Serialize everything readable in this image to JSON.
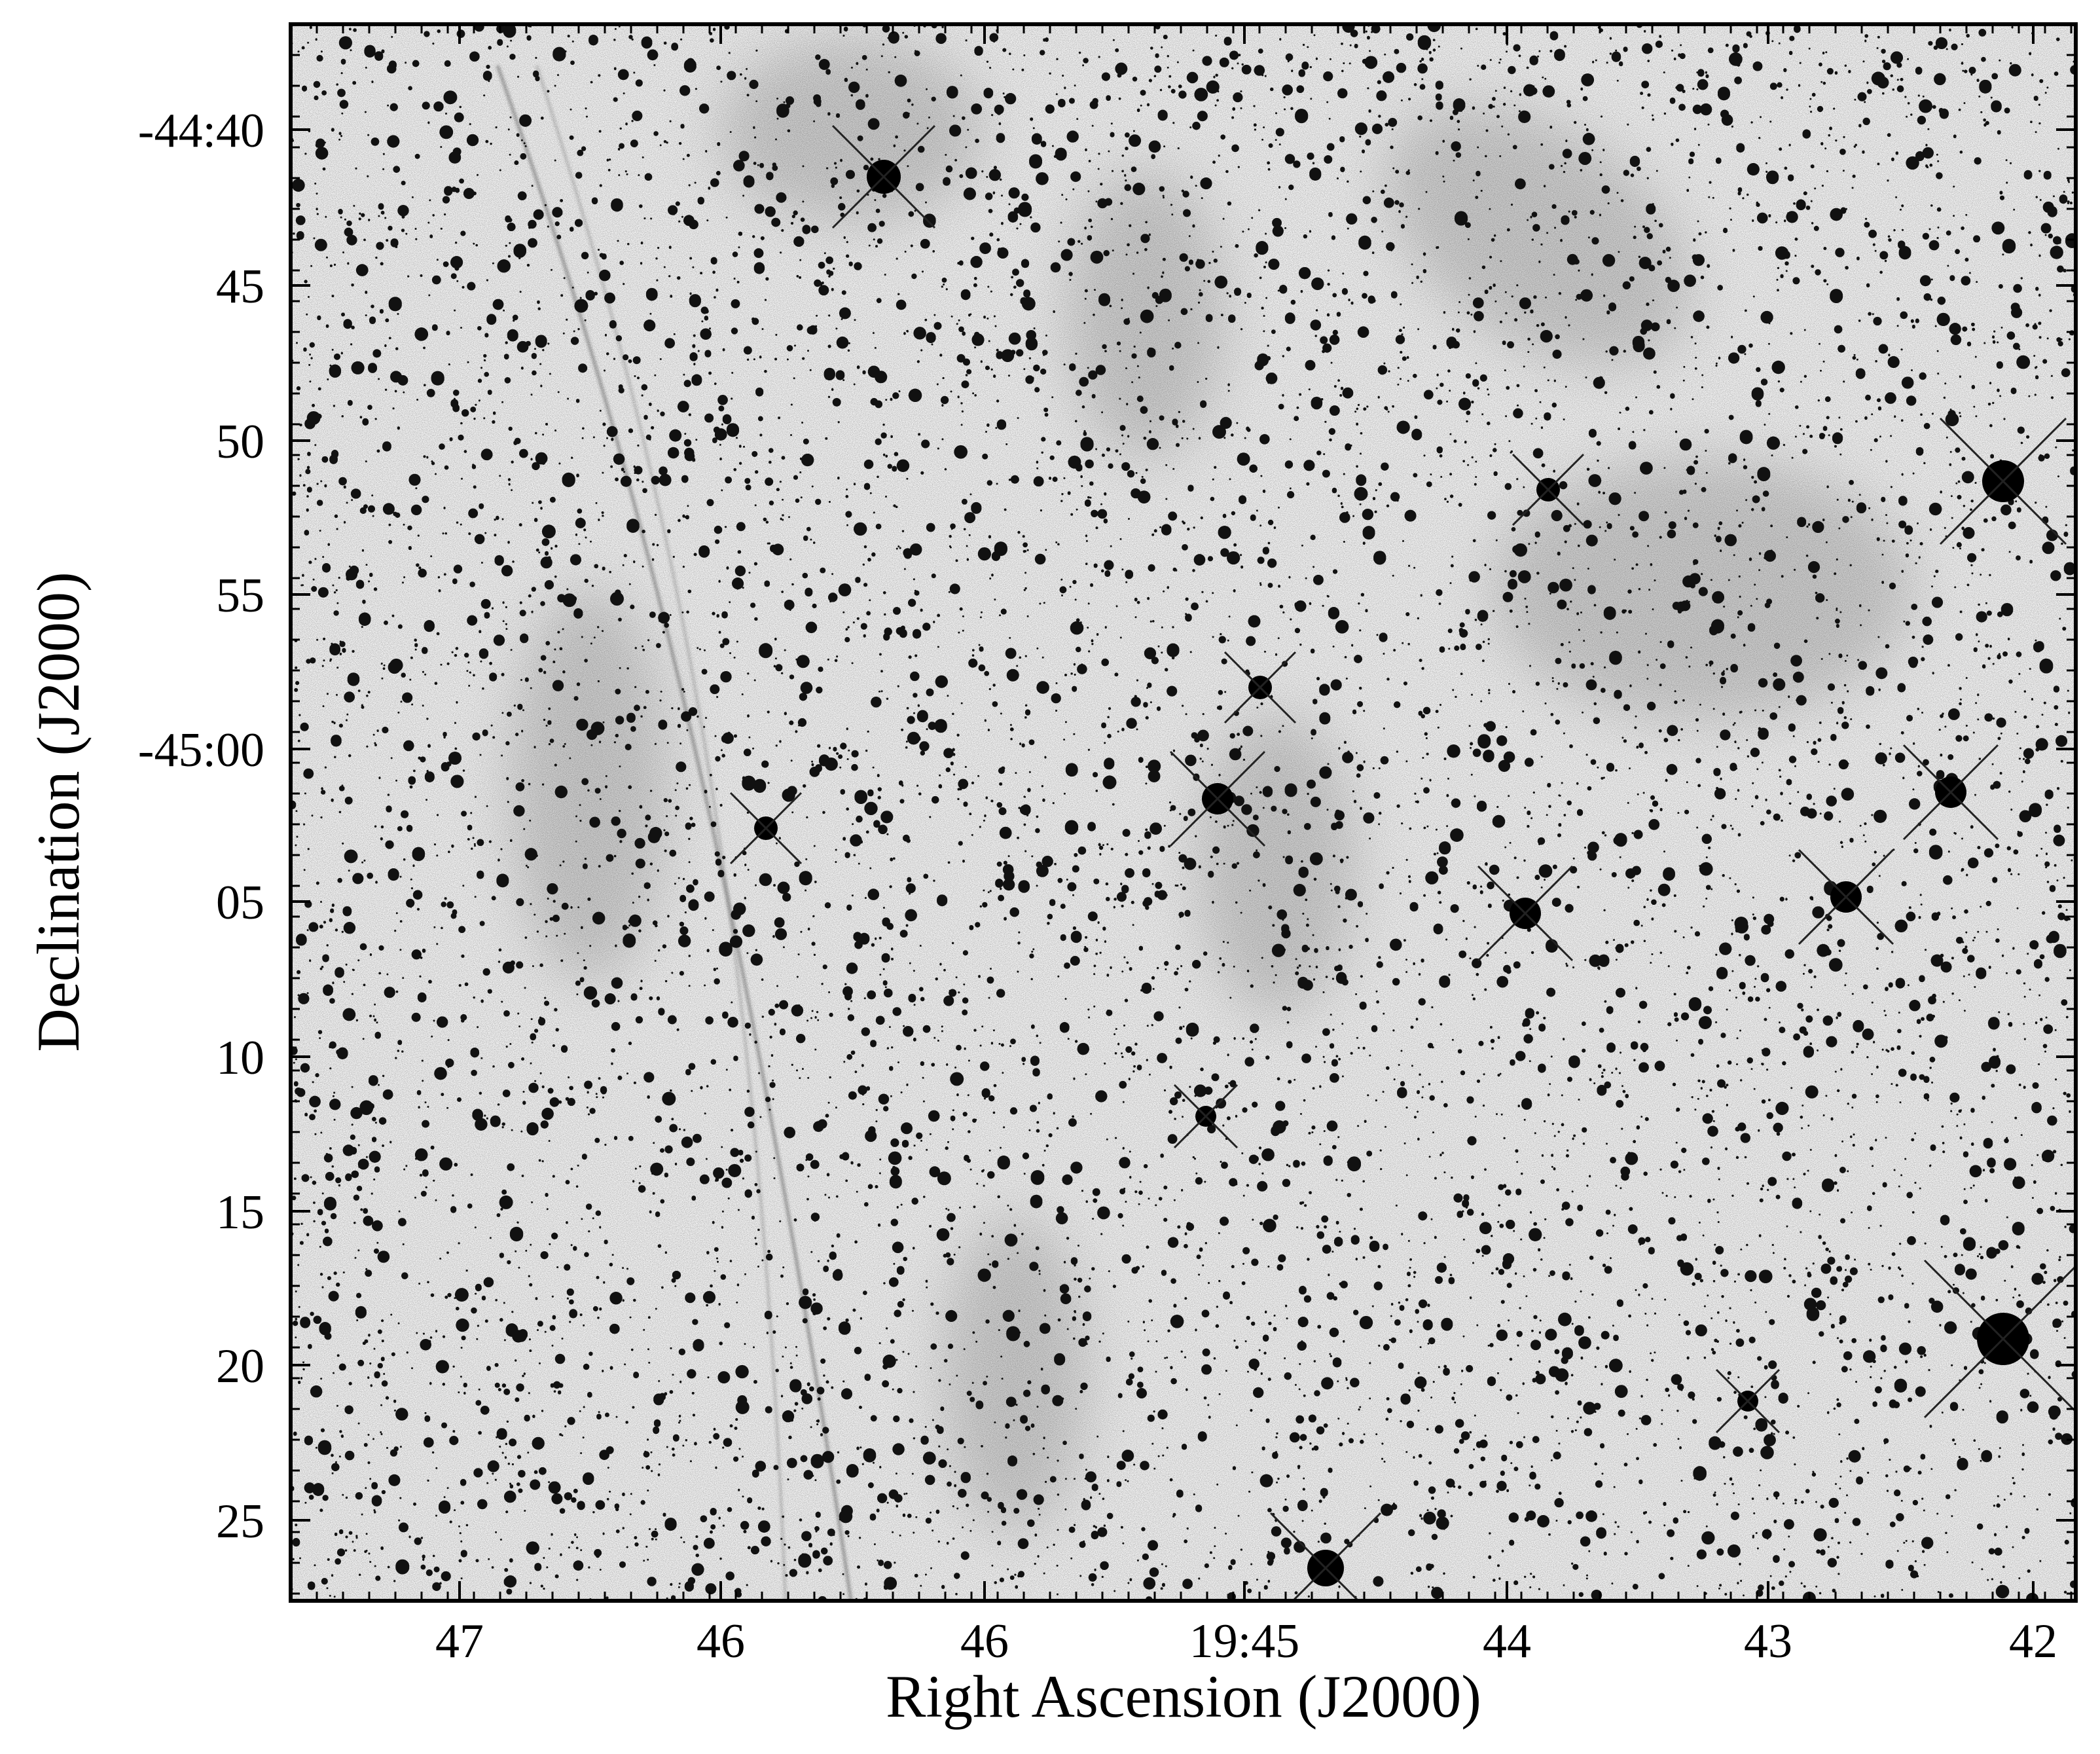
{
  "figure": {
    "x_axis": {
      "label": "Right Ascension (J2000)",
      "ticks": [
        "47",
        "46",
        "46",
        "19:45",
        "44",
        "43",
        "42"
      ]
    },
    "y_axis": {
      "label": "Declination (J2000)",
      "ticks": [
        "-44:40",
        "45",
        "50",
        "55",
        "-45:00",
        "05",
        "10",
        "15",
        "20",
        "25"
      ]
    }
  }
}
